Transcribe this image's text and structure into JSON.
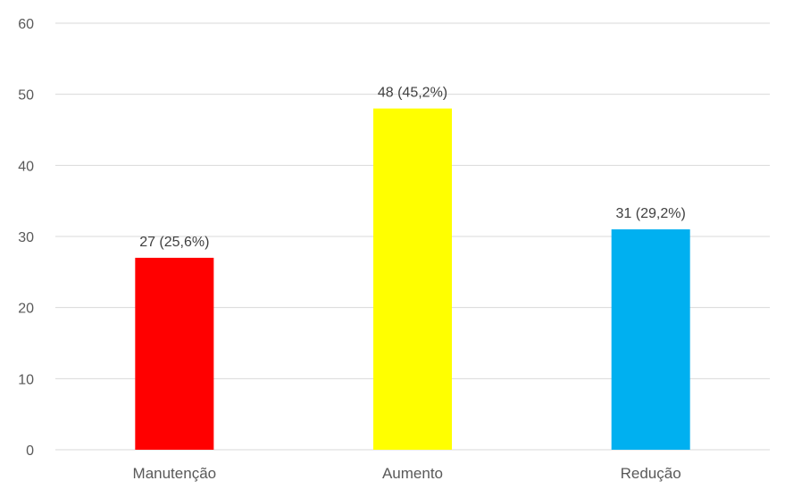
{
  "chart_data": {
    "type": "bar",
    "title": "",
    "xlabel": "",
    "ylabel": "",
    "categories": [
      "Manutenção",
      "Aumento",
      "Redução"
    ],
    "values": [
      27,
      48,
      31
    ],
    "data_labels": [
      "27 (25,6%)",
      "48 (45,2%)",
      "31 (29,2%)"
    ],
    "bar_colors": [
      "#ff0000",
      "#ffff00",
      "#00b0f0"
    ],
    "ylim": [
      0,
      60
    ],
    "yticks": [
      0,
      10,
      20,
      30,
      40,
      50,
      60
    ],
    "grid": true,
    "legend": "none"
  }
}
